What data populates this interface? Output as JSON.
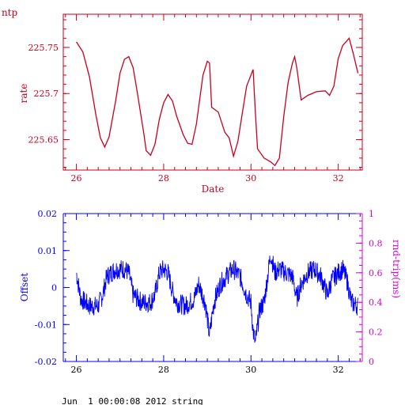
{
  "page_label": "ntp",
  "footer_text": "Jun  1 00:00:08 2012 string",
  "colors": {
    "top": "#c8001e",
    "offset": "#0000ff",
    "rtt": "#d400d4",
    "background": "#ffffff"
  },
  "chart_data": [
    {
      "type": "line",
      "title": "",
      "xlabel": "Date",
      "ylabel": "rate",
      "xlim": [
        25.7,
        32.55
      ],
      "ylim": [
        225.617,
        225.786
      ],
      "x_ticks": [
        26,
        28,
        30,
        32
      ],
      "x_tick_labels": [
        "26",
        "28",
        "30",
        "32"
      ],
      "y_ticks": [
        225.65,
        225.7,
        225.75
      ],
      "y_tick_labels": [
        "225.65",
        "225.7",
        "225.75"
      ],
      "grid": false,
      "legend": "none",
      "series": [
        {
          "values": [
            [
              26.0,
              225.756
            ],
            [
              26.15,
              225.745
            ],
            [
              26.3,
              225.718
            ],
            [
              26.45,
              225.676
            ],
            [
              26.55,
              225.652
            ],
            [
              26.65,
              225.642
            ],
            [
              26.75,
              225.653
            ],
            [
              26.9,
              225.692
            ],
            [
              27.0,
              225.722
            ],
            [
              27.1,
              225.737
            ],
            [
              27.2,
              225.74
            ],
            [
              27.3,
              225.728
            ],
            [
              27.4,
              225.7
            ],
            [
              27.55,
              225.655
            ],
            [
              27.6,
              225.638
            ],
            [
              27.7,
              225.633
            ],
            [
              27.8,
              225.645
            ],
            [
              27.9,
              225.672
            ],
            [
              28.0,
              225.69
            ],
            [
              28.1,
              225.699
            ],
            [
              28.2,
              225.692
            ],
            [
              28.3,
              225.675
            ],
            [
              28.45,
              225.655
            ],
            [
              28.55,
              225.646
            ],
            [
              28.65,
              225.645
            ],
            [
              28.75,
              225.667
            ],
            [
              28.8,
              225.685
            ],
            [
              28.9,
              225.72
            ],
            [
              29.0,
              225.735
            ],
            [
              29.05,
              225.733
            ],
            [
              29.1,
              225.685
            ],
            [
              29.25,
              225.68
            ],
            [
              29.4,
              225.658
            ],
            [
              29.5,
              225.652
            ],
            [
              29.6,
              225.632
            ],
            [
              29.7,
              225.648
            ],
            [
              29.8,
              225.678
            ],
            [
              29.9,
              225.708
            ],
            [
              30.05,
              225.726
            ],
            [
              30.1,
              225.68
            ],
            [
              30.15,
              225.64
            ],
            [
              30.3,
              225.63
            ],
            [
              30.45,
              225.626
            ],
            [
              30.55,
              225.622
            ],
            [
              30.65,
              225.63
            ],
            [
              30.75,
              225.675
            ],
            [
              30.85,
              225.712
            ],
            [
              30.95,
              225.733
            ],
            [
              31.0,
              225.74
            ],
            [
              31.05,
              225.728
            ],
            [
              31.15,
              225.693
            ],
            [
              31.3,
              225.698
            ],
            [
              31.5,
              225.702
            ],
            [
              31.7,
              225.703
            ],
            [
              31.8,
              225.698
            ],
            [
              31.9,
              225.708
            ],
            [
              32.0,
              225.738
            ],
            [
              32.1,
              225.752
            ],
            [
              32.25,
              225.76
            ],
            [
              32.35,
              225.742
            ],
            [
              32.45,
              225.722
            ]
          ]
        }
      ]
    },
    {
      "type": "line",
      "title": "",
      "xlabel": "",
      "ylabel": "Offset",
      "y2label": "rnd-trip(ms)",
      "xlim": [
        25.7,
        32.55
      ],
      "ylim": [
        -0.02,
        0.02
      ],
      "y2lim": [
        0,
        1
      ],
      "x_ticks": [
        26,
        28,
        30,
        32
      ],
      "x_tick_labels": [
        "26",
        "28",
        "30",
        "32"
      ],
      "y_ticks": [
        -0.02,
        -0.01,
        0,
        0.01,
        0.02
      ],
      "y_tick_labels": [
        "-0.02",
        "-0.01",
        "0",
        "0.01",
        "0.02"
      ],
      "y2_ticks": [
        0,
        0.2,
        0.4,
        0.6,
        0.8,
        1
      ],
      "y2_tick_labels": [
        "0",
        "0.2",
        "0.4",
        "0.6",
        "0.8",
        "1"
      ],
      "grid": false,
      "legend": "none",
      "series": [
        {
          "values": [
            [
              26.0,
              0.004
            ],
            [
              26.1,
              -0.003
            ],
            [
              26.3,
              -0.005
            ],
            [
              26.5,
              -0.005
            ],
            [
              26.6,
              -0.002
            ],
            [
              26.7,
              0.003
            ],
            [
              26.9,
              0.005
            ],
            [
              27.1,
              0.005
            ],
            [
              27.2,
              0.004
            ],
            [
              27.3,
              -0.002
            ],
            [
              27.5,
              -0.004
            ],
            [
              27.7,
              -0.004
            ],
            [
              27.8,
              -0.002
            ],
            [
              27.9,
              0.004
            ],
            [
              28.0,
              0.005
            ],
            [
              28.1,
              0.004
            ],
            [
              28.2,
              -0.001
            ],
            [
              28.3,
              -0.004
            ],
            [
              28.5,
              -0.005
            ],
            [
              28.7,
              -0.003
            ],
            [
              28.8,
              0.001
            ],
            [
              28.95,
              -0.004
            ],
            [
              29.05,
              -0.013
            ],
            [
              29.15,
              -0.004
            ],
            [
              29.3,
              0.001
            ],
            [
              29.5,
              0.004
            ],
            [
              29.6,
              0.005
            ],
            [
              29.75,
              0.003
            ],
            [
              29.9,
              -0.002
            ],
            [
              30.0,
              -0.004
            ],
            [
              30.05,
              -0.012
            ],
            [
              30.1,
              -0.015
            ],
            [
              30.2,
              -0.006
            ],
            [
              30.3,
              -0.004
            ],
            [
              30.45,
              0.009
            ],
            [
              30.55,
              0.004
            ],
            [
              30.65,
              0.005
            ],
            [
              30.8,
              0.004
            ],
            [
              30.95,
              0.003
            ],
            [
              31.05,
              -0.003
            ],
            [
              31.15,
              0.001
            ],
            [
              31.3,
              0.004
            ],
            [
              31.45,
              0.005
            ],
            [
              31.6,
              0.003
            ],
            [
              31.75,
              -0.002
            ],
            [
              31.85,
              0.002
            ],
            [
              32.0,
              0.004
            ],
            [
              32.1,
              0.005
            ],
            [
              32.2,
              0.002
            ],
            [
              32.3,
              -0.004
            ],
            [
              32.45,
              -0.005
            ]
          ]
        }
      ]
    }
  ]
}
